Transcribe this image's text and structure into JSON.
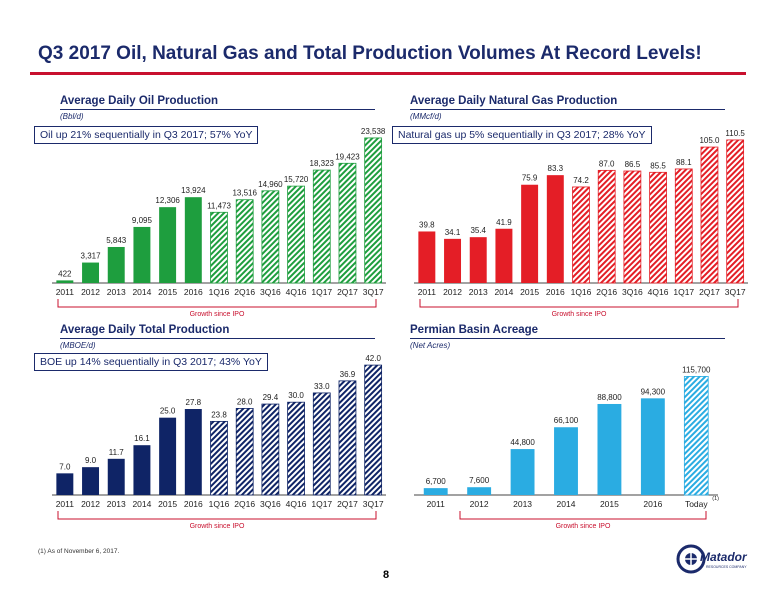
{
  "title": "Q3 2017 Oil, Natural Gas and Total Production Volumes At Record Levels!",
  "footnote": "(1)   As of November 6, 2017.",
  "page_number": "8",
  "colors": {
    "navy": "#1b2a6b",
    "red": "#c8102e",
    "oil": "#1e9e3e",
    "gas": "#e41e26",
    "boe": "#0f2466",
    "acre": "#2aace2"
  },
  "logo": {
    "name": "Matador",
    "tagline": "RESOURCES COMPANY"
  },
  "chart_data": [
    {
      "type": "bar",
      "title": "Average Daily Oil Production",
      "subtitle": "(Bbl/d)",
      "callout": "Oil up 21% sequentially in Q3 2017; 57% YoY",
      "growth_label": "Growth since IPO",
      "categories": [
        "2011",
        "2012",
        "2013",
        "2014",
        "2015",
        "2016",
        "1Q16",
        "2Q16",
        "3Q16",
        "4Q16",
        "1Q17",
        "2Q17",
        "3Q17"
      ],
      "values": [
        422,
        3317,
        5843,
        9095,
        12306,
        13924,
        11473,
        13516,
        14960,
        15720,
        18323,
        19423,
        23538
      ],
      "labels": [
        "422",
        "3,317",
        "5,843",
        "9,095",
        "12,306",
        "13,924",
        "11,473",
        "13,516",
        "14,960",
        "15,720",
        "18,323",
        "19,423",
        "23,538"
      ],
      "ylim": [
        0,
        24500
      ],
      "grid": false
    },
    {
      "type": "bar",
      "title": "Average Daily Natural Gas Production",
      "subtitle": "(MMcf/d)",
      "callout": "Natural gas up 5% sequentially in Q3 2017; 28% YoY",
      "growth_label": "Growth since IPO",
      "categories": [
        "2011",
        "2012",
        "2013",
        "2014",
        "2015",
        "2016",
        "1Q16",
        "2Q16",
        "3Q16",
        "4Q16",
        "1Q17",
        "2Q17",
        "3Q17"
      ],
      "values": [
        39.8,
        34.1,
        35.4,
        41.9,
        75.9,
        83.3,
        74.2,
        87.0,
        86.5,
        85.5,
        88.1,
        105.0,
        110.5
      ],
      "labels": [
        "39.8",
        "34.1",
        "35.4",
        "41.9",
        "75.9",
        "83.3",
        "74.2",
        "87.0",
        "86.5",
        "85.5",
        "88.1",
        "105.0",
        "110.5"
      ],
      "ylim": [
        0,
        112
      ],
      "grid": false
    },
    {
      "type": "bar",
      "title": "Average Daily Total Production",
      "subtitle": "(MBOE/d)",
      "callout": "BOE up 14% sequentially in Q3 2017; 43% YoY",
      "growth_label": "Growth since IPO",
      "categories": [
        "2011",
        "2012",
        "2013",
        "2014",
        "2015",
        "2016",
        "1Q16",
        "2Q16",
        "3Q16",
        "4Q16",
        "1Q17",
        "2Q17",
        "3Q17"
      ],
      "values": [
        7.0,
        9.0,
        11.7,
        16.1,
        25.0,
        27.8,
        23.8,
        28.0,
        29.4,
        30.0,
        33.0,
        36.9,
        42.0
      ],
      "labels": [
        "7.0",
        "9.0",
        "11.7",
        "16.1",
        "25.0",
        "27.8",
        "23.8",
        "28.0",
        "29.4",
        "30.0",
        "33.0",
        "36.9",
        "42.0"
      ],
      "ylim": [
        0,
        43
      ],
      "grid": false
    },
    {
      "type": "bar",
      "title": "Permian Basin Acreage",
      "subtitle": "(Net Acres)",
      "growth_label": "Growth since IPO",
      "categories": [
        "2011",
        "2012",
        "2013",
        "2014",
        "2015",
        "2016",
        "Today"
      ],
      "category_note": "(1)",
      "values": [
        6700,
        7600,
        44800,
        66100,
        88800,
        94300,
        115700
      ],
      "labels": [
        "6,700",
        "7,600",
        "44,800",
        "66,100",
        "88,800",
        "94,300",
        "115,700"
      ],
      "ylim": [
        0,
        120000
      ],
      "grid": false
    }
  ]
}
